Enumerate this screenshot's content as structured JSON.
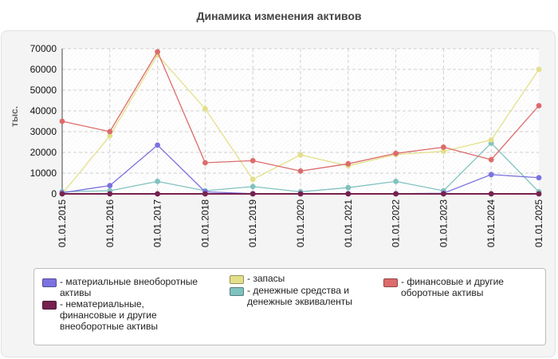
{
  "chart_data": {
    "type": "line",
    "title": "Динамика изменения активов",
    "ylabel": "тыс.",
    "xlabel": "",
    "ylim": [
      0,
      70000
    ],
    "y_ticks": [
      0,
      10000,
      20000,
      30000,
      40000,
      50000,
      60000,
      70000
    ],
    "grid": true,
    "legend_position": "bottom",
    "categories": [
      "01.01.2015",
      "01.01.2016",
      "01.01.2017",
      "01.01.2018",
      "01.01.2019",
      "01.01.2020",
      "01.01.2021",
      "01.01.2022",
      "01.01.2023",
      "01.01.2024",
      "01.01.2025"
    ],
    "series": [
      {
        "name": "- материальные внеоборотные активы",
        "color": "#7b72e0",
        "values": [
          500,
          4000,
          23500,
          1000,
          100,
          100,
          100,
          100,
          300,
          9300,
          7800
        ]
      },
      {
        "name": "- нематериальные, финансовые и другие внеоборотные активы",
        "color": "#76214f",
        "values": [
          0,
          0,
          0,
          0,
          0,
          0,
          0,
          0,
          0,
          0,
          0
        ]
      },
      {
        "name": "- запасы",
        "color": "#e3e08a",
        "values": [
          0,
          28000,
          67000,
          41000,
          7000,
          18800,
          13500,
          19000,
          20500,
          26000,
          60000
        ]
      },
      {
        "name": "- денежные средства и денежные эквиваленты",
        "color": "#80c2bf",
        "values": [
          1000,
          1500,
          6000,
          1500,
          3500,
          1000,
          3000,
          6000,
          1500,
          24500,
          1000
        ]
      },
      {
        "name": "- финансовые и другие оборотные активы",
        "color": "#dd6b6b",
        "values": [
          35000,
          30000,
          68500,
          15000,
          16000,
          11000,
          14500,
          19500,
          22500,
          16500,
          42500
        ]
      }
    ]
  }
}
